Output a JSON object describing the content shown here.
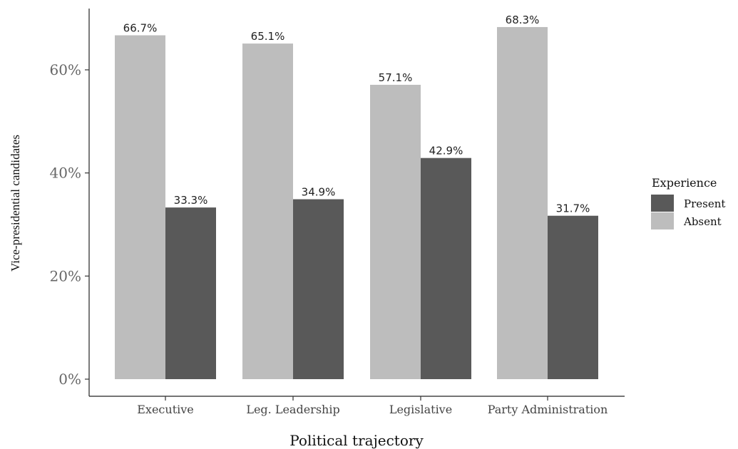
{
  "chart_data": {
    "type": "bar",
    "categories": [
      "Executive",
      "Leg. Leadership",
      "Legislative",
      "Party Administration"
    ],
    "series": [
      {
        "name": "Absent",
        "values": [
          66.7,
          65.1,
          57.1,
          68.3
        ],
        "labels": [
          "66.7%",
          "65.1%",
          "57.1%",
          "68.3%"
        ],
        "color": "#bdbdbd"
      },
      {
        "name": "Present",
        "values": [
          33.3,
          34.9,
          42.9,
          31.7
        ],
        "labels": [
          "33.3%",
          "34.9%",
          "42.9%",
          "31.7%"
        ],
        "color": "#595959"
      }
    ],
    "xlabel": "Political trajectory",
    "ylabel": "Vice-presidential candidates",
    "ylim": [
      0,
      72
    ],
    "yticks": [
      0,
      20,
      40,
      60
    ],
    "ytick_labels": [
      "0%",
      "20%",
      "40%",
      "60%"
    ],
    "grid": false,
    "legend": {
      "title": "Experience",
      "position": "right",
      "entries": [
        {
          "name": "Present",
          "color": "#595959"
        },
        {
          "name": "Absent",
          "color": "#bdbdbd"
        }
      ]
    }
  }
}
